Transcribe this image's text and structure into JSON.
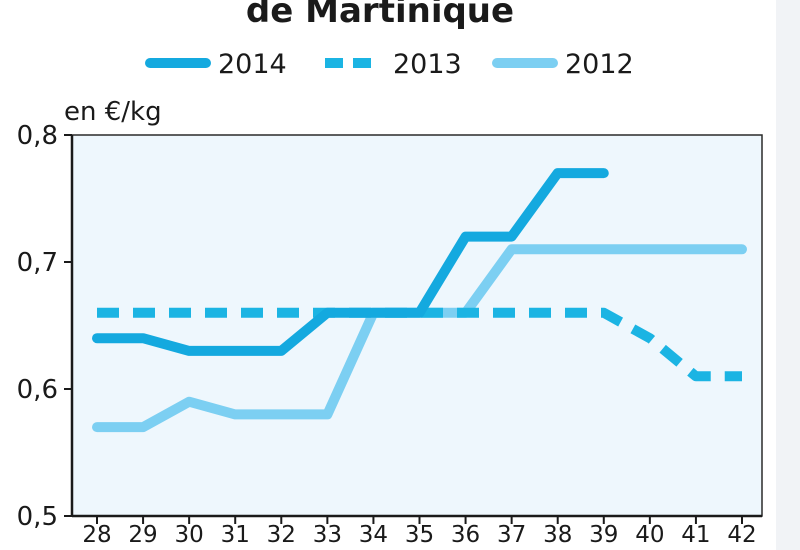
{
  "chart_data": {
    "type": "line",
    "title": "de Martinique",
    "unit_label": "en €/kg",
    "x": [
      "28",
      "29",
      "30",
      "31",
      "32",
      "33",
      "34",
      "35",
      "36",
      "37",
      "38",
      "39",
      "40",
      "41",
      "42"
    ],
    "ylim": [
      0.5,
      0.8
    ],
    "yticks": [
      "0,5",
      "0,6",
      "0,7",
      "0,8"
    ],
    "ytick_values": [
      0.5,
      0.6,
      0.7,
      0.8
    ],
    "grid": false,
    "legend_position": "top",
    "plot_background": "#eef7fd",
    "series": [
      {
        "name": "2012",
        "color": "#7ccff2",
        "style": "solid",
        "values": [
          0.57,
          0.57,
          0.59,
          0.58,
          0.58,
          0.58,
          0.66,
          0.66,
          0.66,
          0.71,
          0.71,
          0.71,
          0.71,
          0.71,
          0.71
        ]
      },
      {
        "name": "2013",
        "color": "#1bb4e3",
        "style": "dashed",
        "values": [
          0.66,
          0.66,
          0.66,
          0.66,
          0.66,
          0.66,
          0.66,
          0.66,
          0.66,
          0.66,
          0.66,
          0.66,
          0.64,
          0.61,
          0.61
        ]
      },
      {
        "name": "2014",
        "color": "#14a9df",
        "style": "solid",
        "values": [
          0.64,
          0.64,
          0.63,
          0.63,
          0.63,
          0.66,
          0.66,
          0.66,
          0.72,
          0.72,
          0.77,
          0.77,
          null,
          null,
          null
        ]
      }
    ],
    "legend_order": [
      "2014",
      "2013",
      "2012"
    ]
  }
}
